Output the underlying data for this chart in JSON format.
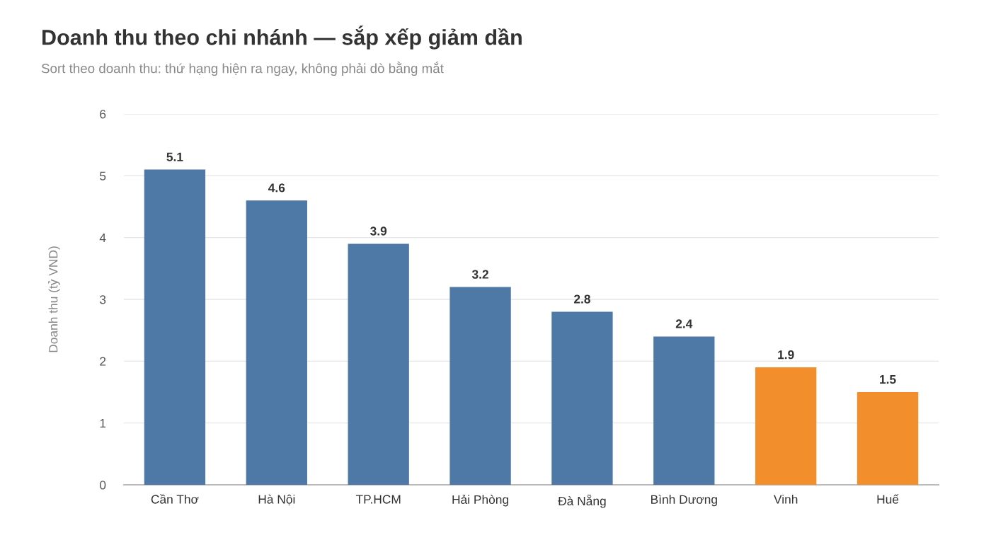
{
  "chart_data": {
    "type": "bar",
    "title": "Doanh thu theo chi nhánh — sắp xếp giảm dần",
    "subtitle": "Sort theo doanh thu: thứ hạng hiện ra ngay, không phải dò bằng mắt",
    "ylabel": "Doanh thu (tỷ VND)",
    "categories": [
      "Cần Thơ",
      "Hà Nội",
      "TP.HCM",
      "Hải Phòng",
      "Đà Nẵng",
      "Bình Dương",
      "Vinh",
      "Huế"
    ],
    "values": [
      5.1,
      4.6,
      3.9,
      3.2,
      2.8,
      2.4,
      1.9,
      1.5
    ],
    "colors": [
      "#4e79a7",
      "#4e79a7",
      "#4e79a7",
      "#4e79a7",
      "#4e79a7",
      "#4e79a7",
      "#f28e2b",
      "#f28e2b"
    ],
    "ylim": [
      0,
      6
    ],
    "yticks": [
      0,
      1,
      2,
      3,
      4,
      5,
      6
    ],
    "grid": "y",
    "data_labels": true
  }
}
